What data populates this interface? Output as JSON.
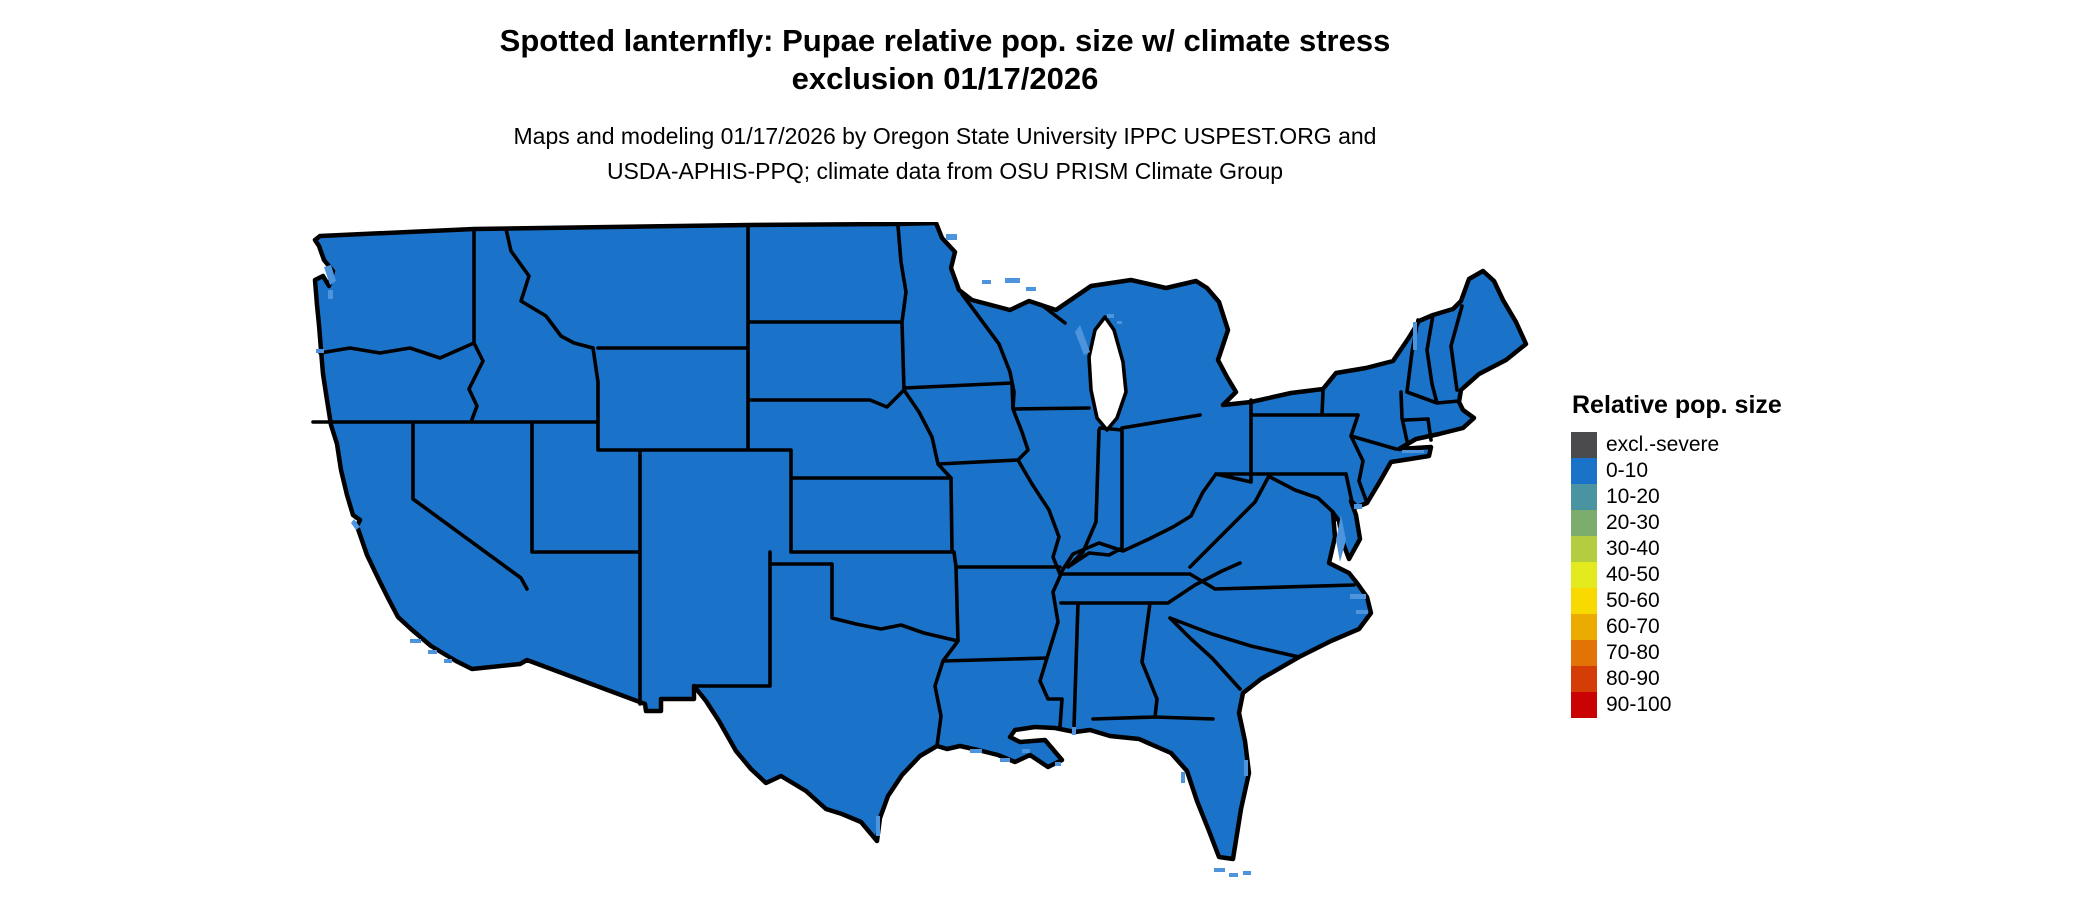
{
  "title": {
    "line1": "Spotted lanternfly: Pupae relative pop. size w/ climate stress",
    "line2": "exclusion 01/17/2026"
  },
  "subtitle": {
    "line1": "Maps and modeling 01/17/2026 by Oregon State University IPPC USPEST.ORG and",
    "line2": "USDA-APHIS-PPQ; climate data from OSU PRISM Climate Group"
  },
  "legend": {
    "title": "Relative pop. size",
    "items": [
      {
        "label": "excl.-severe",
        "color": "#4B4B4D"
      },
      {
        "label": "0-10",
        "color": "#1A73C8"
      },
      {
        "label": "10-20",
        "color": "#4A93A0"
      },
      {
        "label": "20-30",
        "color": "#7CAD6C"
      },
      {
        "label": "30-40",
        "color": "#B4CD3F"
      },
      {
        "label": "40-50",
        "color": "#E3EB1F"
      },
      {
        "label": "50-60",
        "color": "#F8DA00"
      },
      {
        "label": "60-70",
        "color": "#ECAB03"
      },
      {
        "label": "70-80",
        "color": "#E17404"
      },
      {
        "label": "80-90",
        "color": "#D43D06"
      },
      {
        "label": "90-100",
        "color": "#C90204"
      }
    ]
  },
  "map": {
    "region_label": "Contiguous United States",
    "all_states_value": "0-10",
    "fill_color": "#1A73C8",
    "border_color": "#000000",
    "water_color": "#4D94DC",
    "lake_color": "#FFFFFF"
  }
}
